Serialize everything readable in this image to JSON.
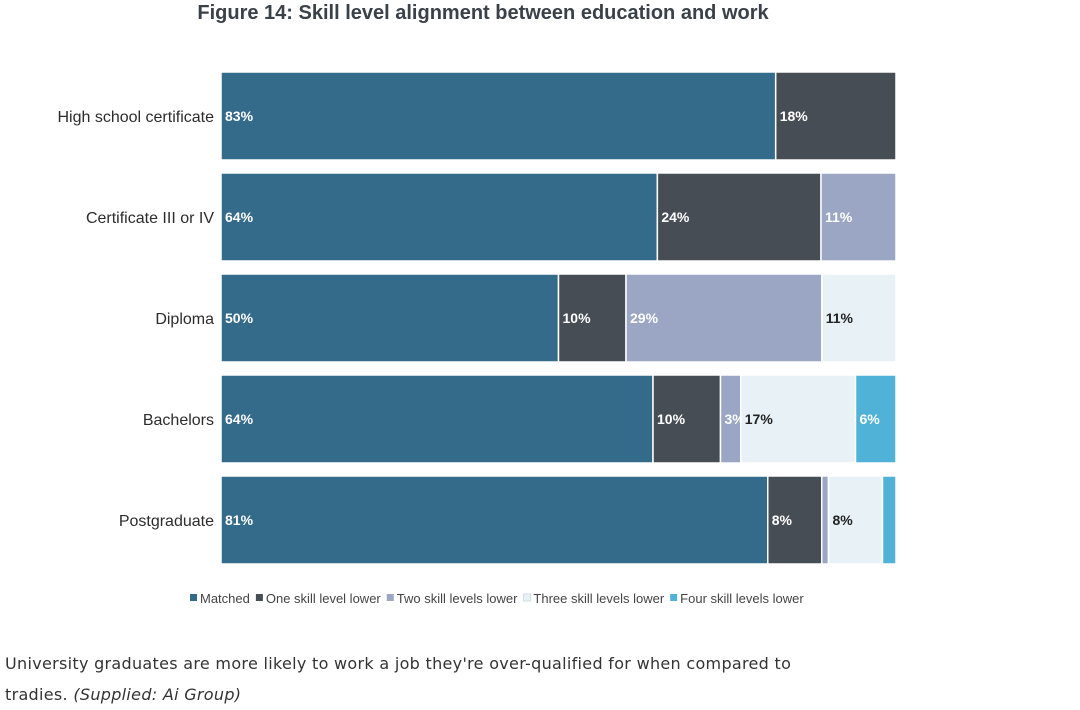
{
  "chart_data": {
    "type": "bar",
    "orientation": "horizontal",
    "stacked": true,
    "title": "Figure 14: Skill level alignment between education and work",
    "categories": [
      "High school certificate",
      "Certificate III or IV",
      "Diploma",
      "Bachelors",
      "Postgraduate"
    ],
    "series": [
      {
        "name": "Matched",
        "color": "#346a8a",
        "label_color": "#ffffff",
        "values": [
          83,
          64,
          50,
          64,
          81
        ],
        "labels": [
          "83%",
          "64%",
          "50%",
          "64%",
          "81%"
        ]
      },
      {
        "name": "One skill level lower",
        "color": "#474d54",
        "label_color": "#ffffff",
        "values": [
          18,
          24,
          10,
          10,
          8
        ],
        "labels": [
          "18%",
          "24%",
          "10%",
          "10%",
          "8%"
        ]
      },
      {
        "name": "Two skill levels lower",
        "color": "#9aa6c3",
        "label_color": "#ffffff",
        "values": [
          0,
          11,
          29,
          3,
          1
        ],
        "labels": [
          "",
          "11%",
          "29%",
          "3%",
          ""
        ]
      },
      {
        "name": "Three skill levels lower",
        "color": "#e8f2f6",
        "label_color": "#222222",
        "values": [
          0,
          0,
          11,
          17,
          8
        ],
        "labels": [
          "",
          "",
          "11%",
          "17%",
          "8%"
        ]
      },
      {
        "name": "Four skill levels lower",
        "color": "#50b2d6",
        "label_color": "#ffffff",
        "values": [
          0,
          0,
          0,
          6,
          2
        ],
        "labels": [
          "",
          "",
          "",
          "6%",
          ""
        ]
      }
    ],
    "legend_position": "bottom",
    "grid": false
  },
  "caption": {
    "text": "University graduates are more likely to work a job they're over-qualified for when compared to tradies.",
    "credit": "(Supplied: Ai Group)"
  }
}
